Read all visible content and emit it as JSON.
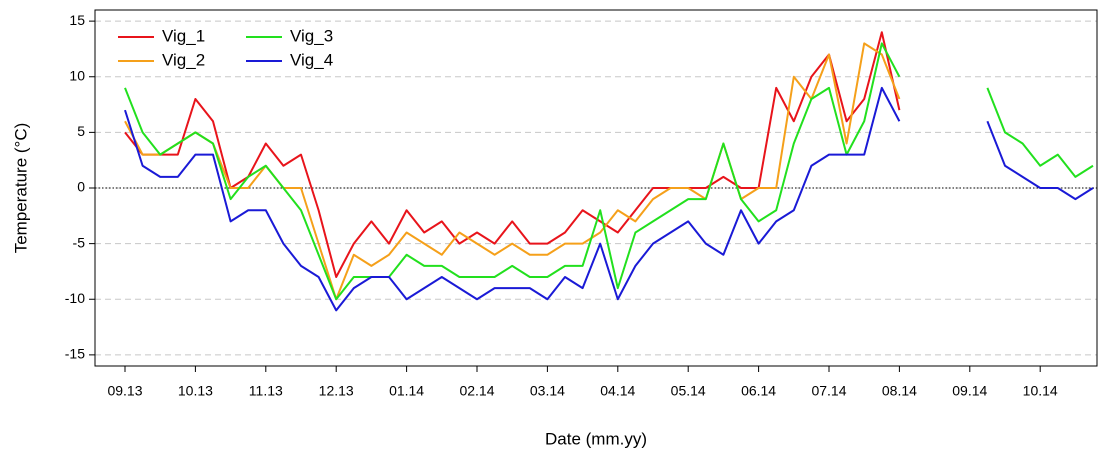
{
  "chart_data": {
    "type": "line",
    "xlabel": "Date (mm.yy)",
    "ylabel": "Temperature (°C)",
    "categories": [
      "09.13",
      null,
      null,
      null,
      "10.13",
      null,
      null,
      null,
      "11.13",
      null,
      null,
      null,
      "12.13",
      null,
      null,
      null,
      "01.14",
      null,
      null,
      null,
      "02.14",
      null,
      null,
      null,
      "03.14",
      null,
      null,
      null,
      "04.14",
      null,
      null,
      null,
      "05.14",
      null,
      null,
      null,
      "06.14",
      null,
      null,
      null,
      "07.14",
      null,
      null,
      null,
      "08.14",
      null,
      null,
      null,
      "09.14",
      null,
      null,
      null,
      "10.14",
      null,
      null,
      null
    ],
    "series": [
      {
        "name": "Vig_1",
        "color": "#e8141b",
        "values": [
          5,
          3,
          3,
          3,
          8,
          6,
          0,
          1,
          4,
          2,
          3,
          -2,
          -8,
          -5,
          -3,
          -5,
          -2,
          -4,
          -3,
          -5,
          -4,
          -5,
          -3,
          -5,
          -5,
          -4,
          -2,
          -3,
          -4,
          -2,
          0,
          0,
          0,
          0,
          1,
          0,
          0,
          9,
          6,
          10,
          12,
          6,
          8,
          14,
          7,
          null,
          null,
          null,
          null,
          null,
          null,
          null,
          null,
          null,
          null,
          null
        ]
      },
      {
        "name": "Vig_2",
        "color": "#f5a01a",
        "values": [
          6,
          3,
          3,
          4,
          5,
          4,
          0,
          0,
          2,
          0,
          0,
          -5,
          -10,
          -6,
          -7,
          -6,
          -4,
          -5,
          -6,
          -4,
          -5,
          -6,
          -5,
          -6,
          -6,
          -5,
          -5,
          -4,
          -2,
          -3,
          -1,
          0,
          0,
          -1,
          4,
          -1,
          0,
          0,
          10,
          8,
          12,
          4,
          13,
          12,
          8,
          null,
          null,
          null,
          null,
          null,
          null,
          null,
          null,
          null,
          null,
          null
        ]
      },
      {
        "name": "Vig_3",
        "color": "#22e01e",
        "values": [
          9,
          5,
          3,
          4,
          5,
          4,
          -1,
          1,
          2,
          0,
          -2,
          -6,
          -10,
          -8,
          -8,
          -8,
          -6,
          -7,
          -7,
          -8,
          -8,
          -8,
          -7,
          -8,
          -8,
          -7,
          -7,
          -2,
          -9,
          -4,
          -3,
          -2,
          -1,
          -1,
          4,
          -1,
          -3,
          -2,
          4,
          8,
          9,
          3,
          6,
          13,
          10,
          null,
          null,
          null,
          null,
          9,
          5,
          4,
          2,
          3,
          1,
          2
        ]
      },
      {
        "name": "Vig_4",
        "color": "#1a1ad6",
        "values": [
          7,
          2,
          1,
          1,
          3,
          3,
          -3,
          -2,
          -2,
          -5,
          -7,
          -8,
          -11,
          -9,
          -8,
          -8,
          -10,
          -9,
          -8,
          -9,
          -10,
          -9,
          -9,
          -9,
          -10,
          -8,
          -9,
          -5,
          -10,
          -7,
          -5,
          -4,
          -3,
          -5,
          -6,
          -2,
          -5,
          -3,
          -2,
          2,
          3,
          3,
          3,
          9,
          6,
          null,
          null,
          null,
          null,
          6,
          2,
          1,
          0,
          0,
          -1,
          0
        ]
      }
    ],
    "ylim": [
      -16,
      16
    ],
    "yticks": [
      -15,
      -10,
      -5,
      0,
      5,
      10,
      15
    ],
    "grid": true,
    "reference_line": 0,
    "legend": "top-left"
  }
}
